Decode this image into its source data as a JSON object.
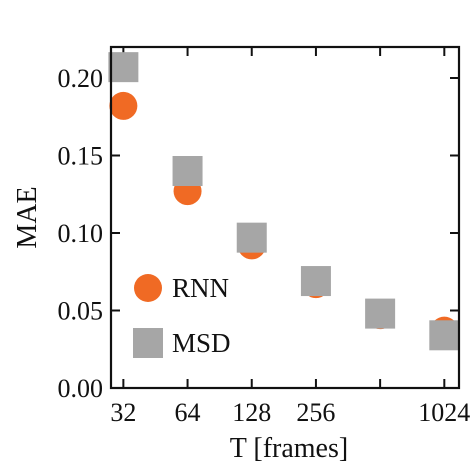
{
  "chart_data": {
    "type": "scatter",
    "xlabel": "T [frames]",
    "ylabel": "MAE",
    "x_scale": "log2",
    "x_ticks": [
      32,
      64,
      128,
      256,
      1024
    ],
    "x_tick_labels": [
      "32",
      "64",
      "128",
      "256",
      "1024"
    ],
    "xlim": [
      28,
      1200
    ],
    "ylim": [
      0,
      0.22
    ],
    "y_ticks": [
      0.0,
      0.05,
      0.1,
      0.15,
      0.2
    ],
    "y_tick_labels": [
      "0.00",
      "0.05",
      "0.10",
      "0.15",
      "0.20"
    ],
    "grid": false,
    "legend_position": "lower-left",
    "series": [
      {
        "name": "RNN",
        "marker": "circle",
        "color": "#f06a24",
        "x": [
          32,
          64,
          128,
          256,
          512,
          1024
        ],
        "y": [
          0.182,
          0.127,
          0.092,
          0.067,
          0.047,
          0.037
        ]
      },
      {
        "name": "MSD",
        "marker": "square",
        "color": "#a6a6a6",
        "x": [
          32,
          64,
          128,
          256,
          512,
          1024
        ],
        "y": [
          0.207,
          0.14,
          0.097,
          0.069,
          0.048,
          0.034
        ]
      }
    ]
  }
}
